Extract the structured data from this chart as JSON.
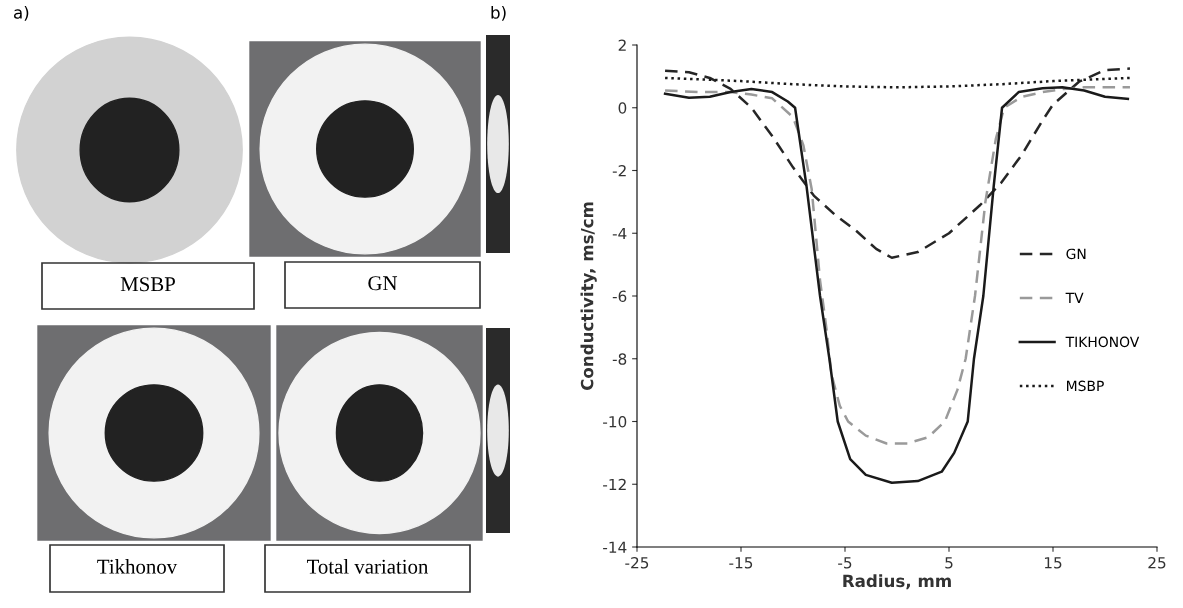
{
  "chart_data": [
    {
      "type": "other",
      "title": "a)",
      "annotations": [
        "MSBP",
        "GN",
        "Tikhonov",
        "Total variation"
      ]
    },
    {
      "type": "line",
      "title": "b)",
      "xlabel": "Radius, mm",
      "ylabel": "Conductivity, ms/cm",
      "xlim": [
        -25,
        25
      ],
      "xticks": [
        -25,
        -15,
        -5,
        5,
        15,
        25
      ],
      "ylim": [
        -14,
        2
      ],
      "yticks": [
        -14,
        -12,
        -10,
        -8,
        -6,
        -4,
        -2,
        0,
        2
      ],
      "grid": false,
      "legend": "right",
      "marker": "none",
      "series": [
        {
          "name": "GN",
          "color": "#262626",
          "line_style": "dashed",
          "x": [
            -22.3,
            -20,
            -18,
            -16,
            -14,
            -12,
            -10,
            -8,
            -6,
            -4,
            -2,
            -0.5,
            2,
            5,
            8,
            10,
            12,
            14,
            15,
            17.5,
            20,
            22.4
          ],
          "values": [
            1.18,
            1.13,
            0.95,
            0.6,
            0.0,
            -0.9,
            -1.9,
            -2.8,
            -3.4,
            -3.9,
            -4.5,
            -4.78,
            -4.6,
            -4.0,
            -3.1,
            -2.4,
            -1.5,
            -0.4,
            0.1,
            0.83,
            1.2,
            1.25
          ]
        },
        {
          "name": "TV",
          "color": "#9a9a9a",
          "line_style": "dashed",
          "x": [
            -22.3,
            -19,
            -16,
            -14,
            -12,
            -10,
            -9,
            -8.2,
            -7.4,
            -6.8,
            -6.3,
            -5.5,
            -4.7,
            -3,
            -1,
            1,
            3,
            4.6,
            5.8,
            6.6,
            7.5,
            8.5,
            9.5,
            10.3,
            12,
            14,
            16,
            18,
            20,
            22.4
          ],
          "values": [
            0.55,
            0.5,
            0.5,
            0.42,
            0.3,
            -0.3,
            -1.2,
            -2.6,
            -5.5,
            -7,
            -8.5,
            -9.5,
            -10.0,
            -10.45,
            -10.7,
            -10.7,
            -10.5,
            -10.0,
            -9.0,
            -8.0,
            -6.0,
            -3.0,
            -1.0,
            0.0,
            0.35,
            0.5,
            0.6,
            0.65,
            0.65,
            0.65
          ]
        },
        {
          "name": "TIKHONOV",
          "color": "#1a1a1a",
          "line_style": "solid",
          "x": [
            -22.3,
            -20,
            -18,
            -16,
            -14,
            -12,
            -10.5,
            -9.8,
            -8.7,
            -7.4,
            -6.5,
            -5.7,
            -4.5,
            -3,
            -0.5,
            2,
            4.3,
            5.5,
            6.8,
            7.4,
            8.3,
            9.3,
            10.1,
            11.7,
            14,
            15.9,
            18,
            20,
            22.2
          ],
          "values": [
            0.45,
            0.32,
            0.35,
            0.5,
            0.6,
            0.5,
            0.2,
            0.0,
            -2.5,
            -6.0,
            -8.0,
            -10.0,
            -11.2,
            -11.7,
            -11.95,
            -11.9,
            -11.6,
            -11.0,
            -10.0,
            -8.0,
            -6.0,
            -2.5,
            0.0,
            0.5,
            0.62,
            0.65,
            0.55,
            0.35,
            0.28
          ]
        },
        {
          "name": "MSBP",
          "color": "#1a1a1a",
          "line_style": "dotted",
          "x": [
            -22.3,
            -15,
            -10,
            -5,
            0,
            5,
            10,
            15,
            22.4
          ],
          "values": [
            0.95,
            0.85,
            0.75,
            0.68,
            0.65,
            0.68,
            0.75,
            0.85,
            0.95
          ]
        }
      ]
    }
  ]
}
